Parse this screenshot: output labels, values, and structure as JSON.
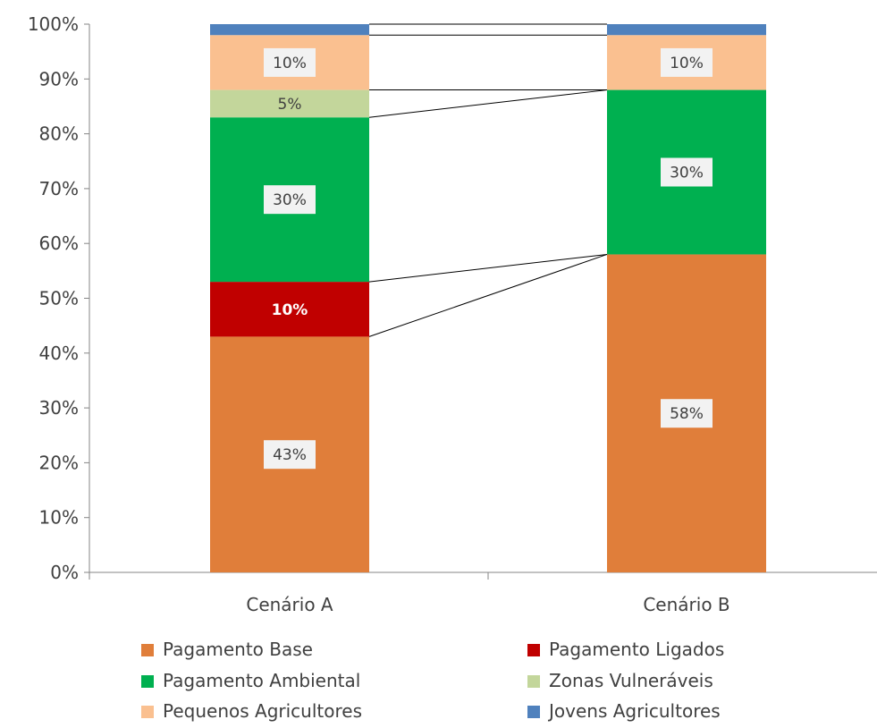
{
  "chart_data": {
    "type": "bar",
    "stacked": true,
    "categories": [
      "Cenário A",
      "Cenário B"
    ],
    "ylim": [
      0,
      100
    ],
    "y_ticks": [
      "0%",
      "10%",
      "20%",
      "30%",
      "40%",
      "50%",
      "60%",
      "70%",
      "80%",
      "90%",
      "100%"
    ],
    "y_tick_values": [
      0,
      10,
      20,
      30,
      40,
      50,
      60,
      70,
      80,
      90,
      100
    ],
    "grid": false,
    "legend_position": "bottom",
    "series_connector_lines": true,
    "series": [
      {
        "name": "Pagamento Base",
        "color": "#E07E3A",
        "values": [
          43,
          58
        ],
        "labels": [
          "43%",
          "58%"
        ]
      },
      {
        "name": "Pagamento Ligados",
        "color": "#C00000",
        "values": [
          10,
          0
        ],
        "labels": [
          "10%",
          ""
        ]
      },
      {
        "name": "Pagamento Ambiental",
        "color": "#00B050",
        "values": [
          30,
          30
        ],
        "labels": [
          "30%",
          "30%"
        ]
      },
      {
        "name": "Zonas Vulneráveis",
        "color": "#C3D69B",
        "values": [
          5,
          0
        ],
        "labels": [
          "5%",
          ""
        ]
      },
      {
        "name": "Pequenos Agricultores",
        "color": "#FAC090",
        "values": [
          10,
          10
        ],
        "labels": [
          "10%",
          "10%"
        ]
      },
      {
        "name": "Jovens Agricultores",
        "color": "#4F81BD",
        "values": [
          2,
          2
        ],
        "labels": [
          "",
          ""
        ]
      }
    ],
    "label_styles": {
      "Pagamento Ligados": {
        "boxed": false,
        "text_color": "#FFFFFF",
        "bold": true
      },
      "Zonas Vulneráveis": {
        "boxed": false,
        "text_color": "#404040",
        "bold": false
      }
    }
  }
}
